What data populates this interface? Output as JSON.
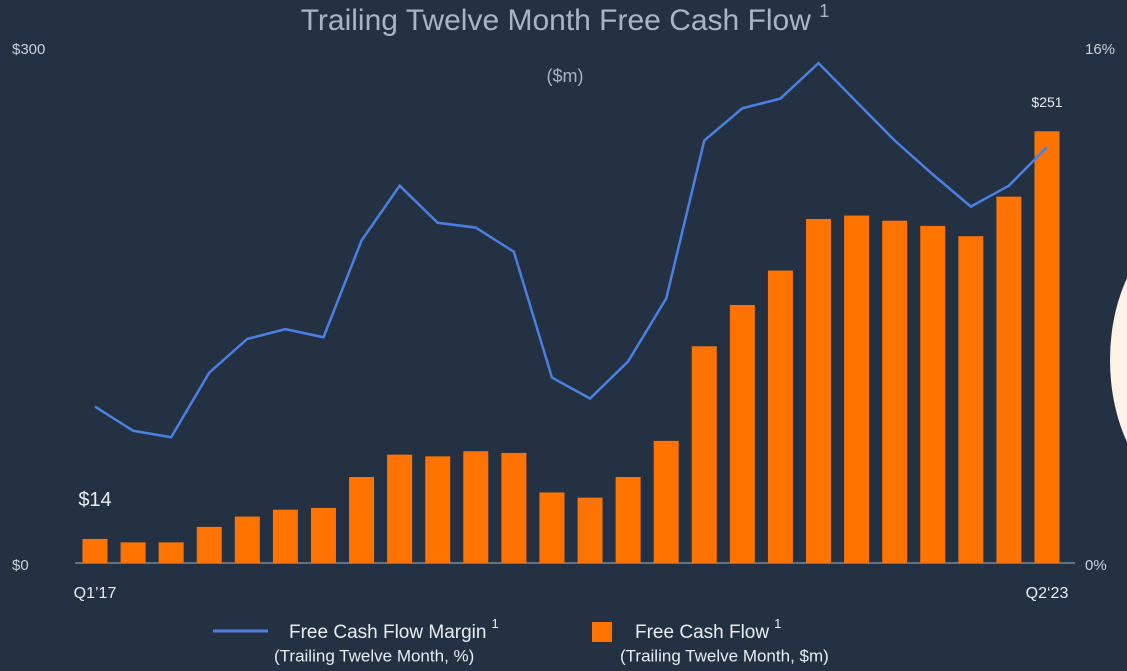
{
  "chart_data": {
    "type": "bar-line",
    "title": "Trailing Twelve Month Free Cash Flow",
    "title_note": "1",
    "subtitle": "($m)",
    "categories": [
      "Q1’17",
      null,
      null,
      null,
      null,
      null,
      null,
      null,
      null,
      null,
      null,
      null,
      null,
      null,
      null,
      null,
      null,
      null,
      null,
      null,
      null,
      null,
      null,
      null,
      null,
      "Q2‘23"
    ],
    "series": [
      {
        "name": "Free Cash Flow",
        "note": "1",
        "sublabel": "(Trailing Twelve Month, $m)",
        "color": "#ff7300",
        "kind": "bar",
        "values": [
          14,
          12,
          12,
          21,
          27,
          31,
          32,
          50,
          63,
          62,
          65,
          64,
          41,
          38,
          50,
          71,
          126,
          150,
          170,
          200,
          202,
          199,
          196,
          190,
          213,
          251
        ],
        "value_labels": [
          "$14",
          null,
          null,
          null,
          null,
          null,
          null,
          null,
          null,
          null,
          null,
          null,
          null,
          null,
          null,
          null,
          null,
          null,
          null,
          null,
          null,
          null,
          null,
          null,
          null,
          "$251"
        ]
      },
      {
        "name": "Free Cash Flow Margin",
        "note": "1",
        "sublabel": "(Trailing Twelve Month, %)",
        "color": "#4a80e2",
        "kind": "line",
        "axis": "y2",
        "values": [
          4.85,
          4.1,
          3.9,
          5.9,
          6.95,
          7.25,
          7.0,
          10.0,
          11.7,
          10.55,
          10.4,
          9.65,
          5.75,
          5.1,
          6.25,
          8.2,
          13.1,
          14.1,
          14.4,
          15.5,
          14.3,
          13.1,
          12.05,
          11.05,
          11.7,
          12.9
        ]
      }
    ],
    "ylim": [
      0,
      300
    ],
    "yticks": [
      {
        "value": 0,
        "label": "$0"
      },
      {
        "value": 300,
        "label": "$300"
      }
    ],
    "y2lim": [
      0,
      16
    ],
    "y2ticks": [
      {
        "value": 0,
        "label": "0%"
      },
      {
        "value": 16,
        "label": "16%"
      }
    ]
  }
}
